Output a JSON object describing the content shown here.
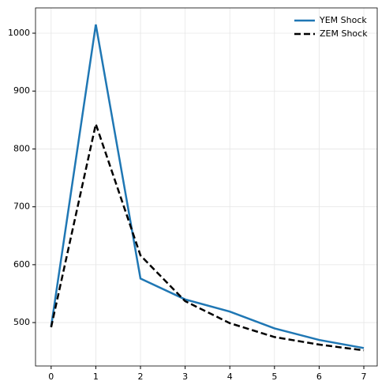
{
  "chart_data": {
    "type": "line",
    "x": [
      0,
      1,
      2,
      3,
      4,
      5,
      6,
      7
    ],
    "series": [
      {
        "name": "YEM Shock",
        "color": "#1f77b4",
        "linestyle": "solid",
        "values": [
          493,
          1015,
          576,
          540,
          519,
          490,
          470,
          456
        ]
      },
      {
        "name": "ZEM Shock",
        "color": "#000000",
        "linestyle": "dashed",
        "values": [
          492,
          843,
          616,
          537,
          499,
          475,
          462,
          452
        ]
      }
    ],
    "xlim": [
      -0.35,
      7.3
    ],
    "xticks": [
      0,
      1,
      2,
      3,
      4,
      5,
      6,
      7
    ],
    "ylim": [
      425,
      1043.7
    ],
    "yticks": [
      500,
      600,
      700,
      800,
      900,
      1000
    ],
    "grid": true,
    "legend": "upper right"
  }
}
